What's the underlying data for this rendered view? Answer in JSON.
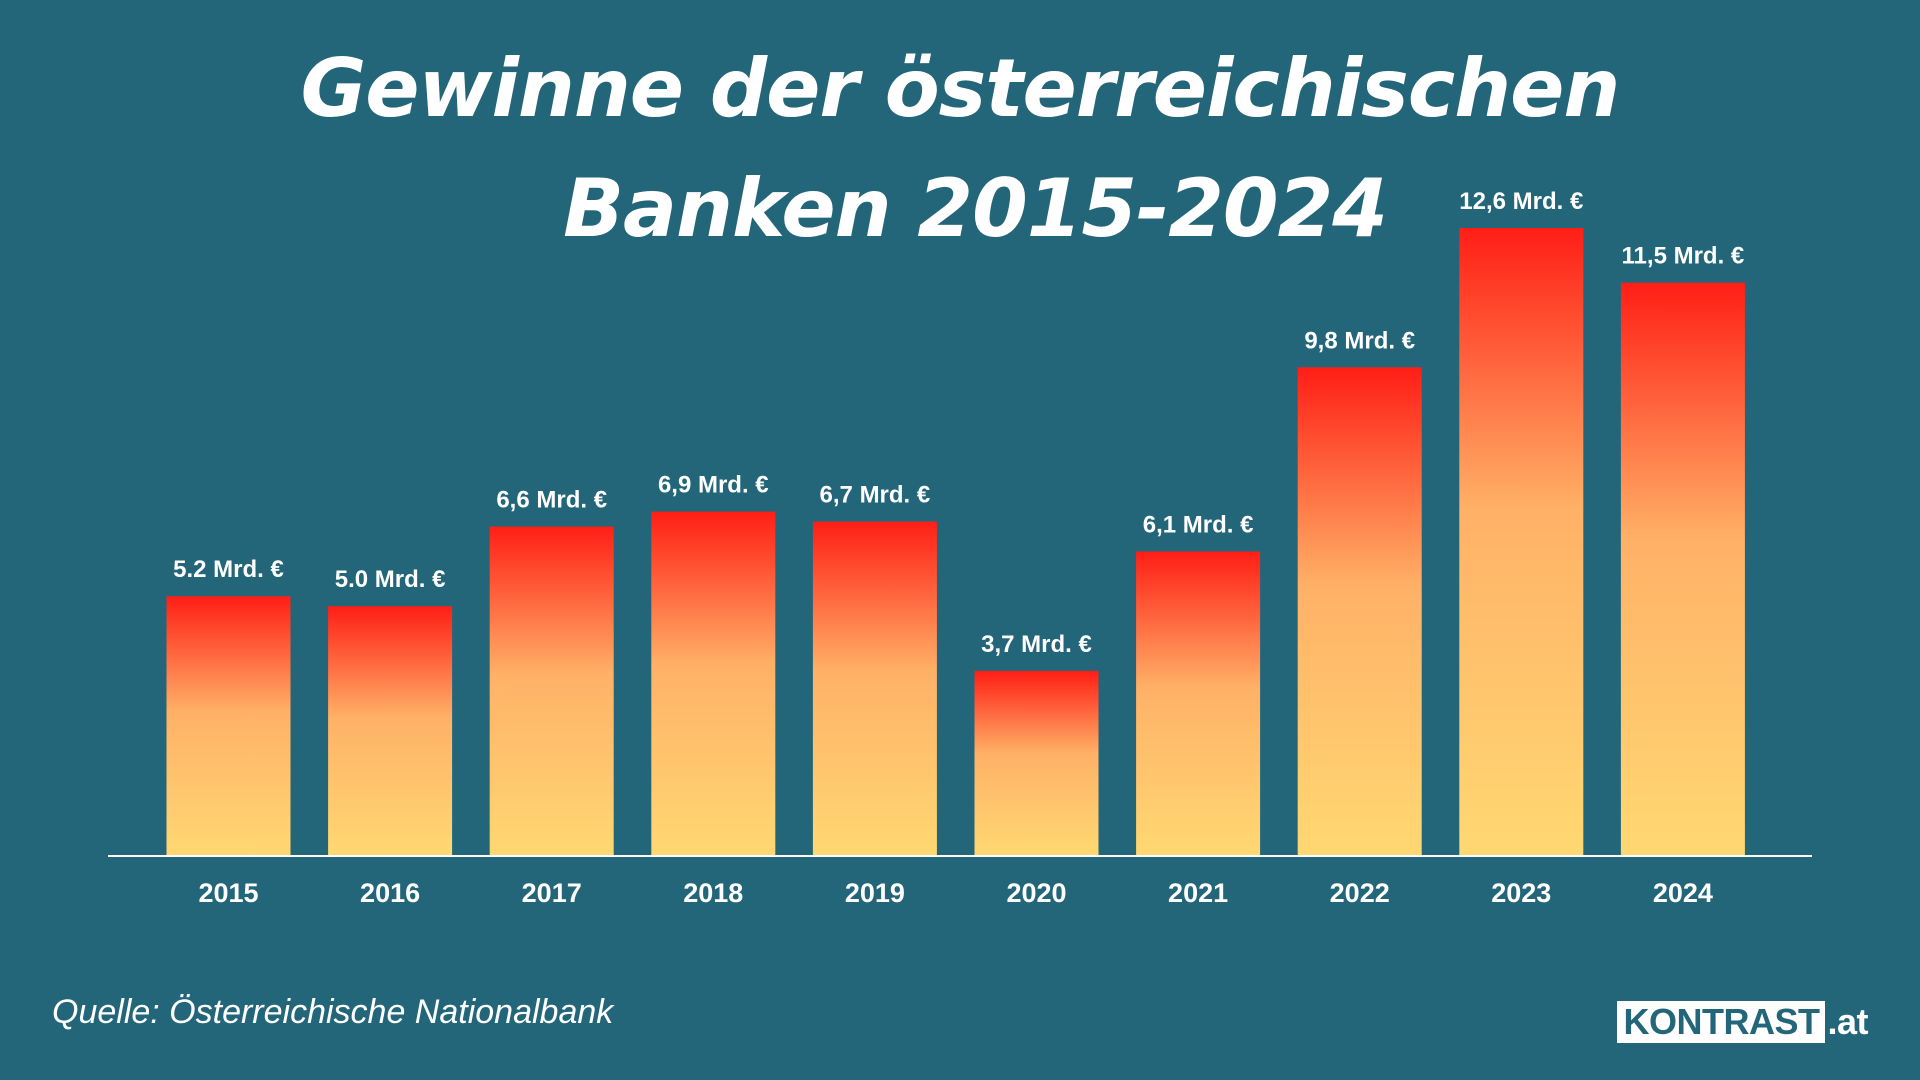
{
  "title_line1": "Gewinne der österreichischen",
  "title_line2": "Banken 2015-2024",
  "source": "Quelle: Österreichische Nationalbank",
  "brand": {
    "name": "KONTRAST",
    "suffix": ".at"
  },
  "colors": {
    "background": "#23667a",
    "bar_top": "#ff1e16",
    "bar_mid": "#ffb167",
    "bar_bottom": "#ffd872",
    "text": "#ffffff"
  },
  "chart_data": {
    "type": "bar",
    "title": "Gewinne der österreichischen Banken 2015-2024",
    "categories": [
      "2015",
      "2016",
      "2017",
      "2018",
      "2019",
      "2020",
      "2021",
      "2022",
      "2023",
      "2024"
    ],
    "values": [
      5.2,
      5.0,
      6.6,
      6.9,
      6.7,
      3.7,
      6.1,
      9.8,
      12.6,
      11.5
    ],
    "data_labels": [
      "5.2 Mrd. €",
      "5.0 Mrd. €",
      "6,6 Mrd. €",
      "6,9 Mrd. €",
      "6,7 Mrd. €",
      "3,7 Mrd. €",
      "6,1 Mrd. €",
      "9,8 Mrd. €",
      "12,6 Mrd. €",
      "11,5 Mrd. €"
    ],
    "xlabel": "",
    "ylabel": "",
    "ylim": [
      0,
      14
    ],
    "grid": false,
    "legend": "none"
  }
}
